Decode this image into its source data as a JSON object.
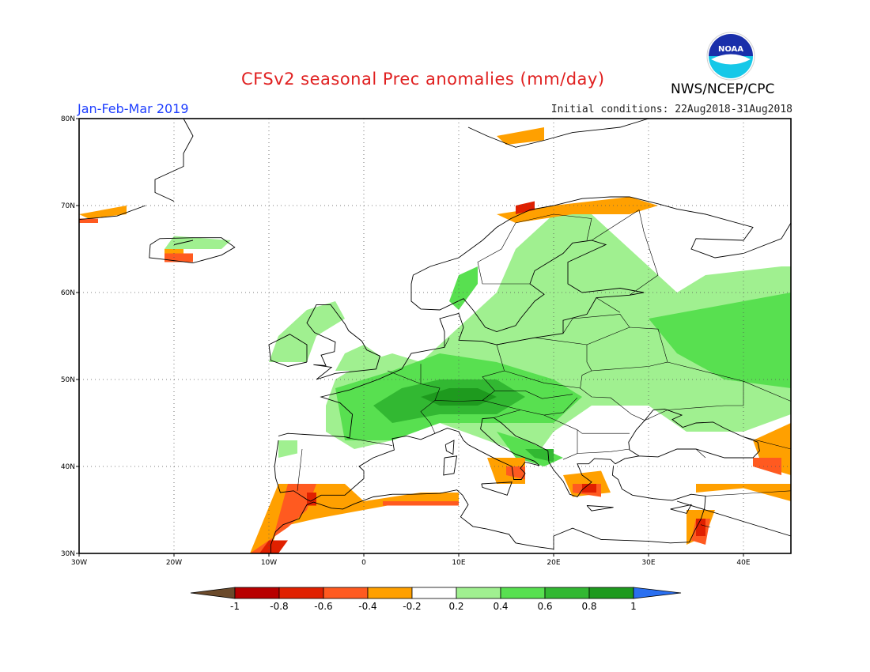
{
  "header": {
    "title": "CFSv2 seasonal Prec anomalies (mm/day)",
    "period": "Jan-Feb-Mar 2019",
    "initial_conditions": "Initial conditions: 22Aug2018-31Aug2018",
    "agency": "NWS/NCEP/CPC",
    "logo_text": "NOAA"
  },
  "map": {
    "lon_range": [
      -30,
      45
    ],
    "lat_range": [
      30,
      80
    ],
    "lat_labels": [
      "30N",
      "40N",
      "50N",
      "60N",
      "70N",
      "80N"
    ],
    "lon_labels": [
      "30W",
      "20W",
      "10W",
      "0",
      "10E",
      "20E",
      "30E",
      "40E"
    ]
  },
  "legend": {
    "labels": [
      "-1",
      "-0.8",
      "-0.6",
      "-0.4",
      "-0.2",
      "0.2",
      "0.4",
      "0.6",
      "0.8",
      "1"
    ],
    "colors": [
      "#6b4a2b",
      "#b80000",
      "#e02000",
      "#ff5a20",
      "#ffa000",
      "#ffffff",
      "#a0f090",
      "#58e050",
      "#32b832",
      "#1e9a1e",
      "#2a6ff0"
    ]
  },
  "colors": {
    "title": "#e02020",
    "period": "#1f3fff",
    "map_frame": "#000000",
    "coast": "#000000"
  }
}
